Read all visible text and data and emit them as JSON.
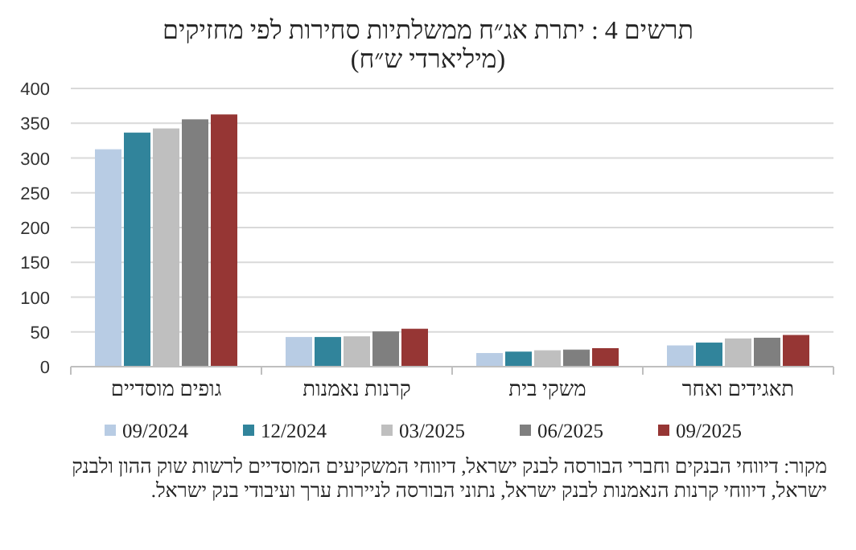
{
  "chart_data": {
    "type": "bar",
    "title": "תרשים 4 : יתרת אג״ח ממשלתיות סחירות לפי מחזיקים",
    "subtitle": "(מיליארדי ש״ח)",
    "categories": [
      "גופים מוסדיים",
      "קרנות נאמנות",
      "משקי בית",
      "תאגידים ואחר"
    ],
    "series": [
      {
        "name": "09/2024",
        "color": "#b8cce4",
        "values": [
          312,
          42,
          19,
          30
        ]
      },
      {
        "name": "12/2024",
        "color": "#31849b",
        "values": [
          336,
          42,
          21,
          34
        ]
      },
      {
        "name": "03/2025",
        "color": "#bfbfbf",
        "values": [
          342,
          43,
          23,
          40
        ]
      },
      {
        "name": "06/2025",
        "color": "#7f7f7f",
        "values": [
          355,
          50,
          24,
          41
        ]
      },
      {
        "name": "09/2025",
        "color": "#963634",
        "values": [
          362,
          54,
          26,
          45
        ]
      }
    ],
    "ylim": [
      0,
      400
    ],
    "yticks": [
      0,
      50,
      100,
      150,
      200,
      250,
      300,
      350,
      400
    ],
    "grid": "y",
    "legend": "bottom",
    "annotations": [
      "מקור: דיווחי הבנקים וחברי הבורסה לבנק ישראל, דיווחי המשקיעים המוסדיים לרשות שוק ההון ולבנק ישראל, דיווחי קרנות הנאמנות לבנק ישראל, נתוני הבורסה לניירות ערך ועיבודי בנק ישראל."
    ]
  }
}
